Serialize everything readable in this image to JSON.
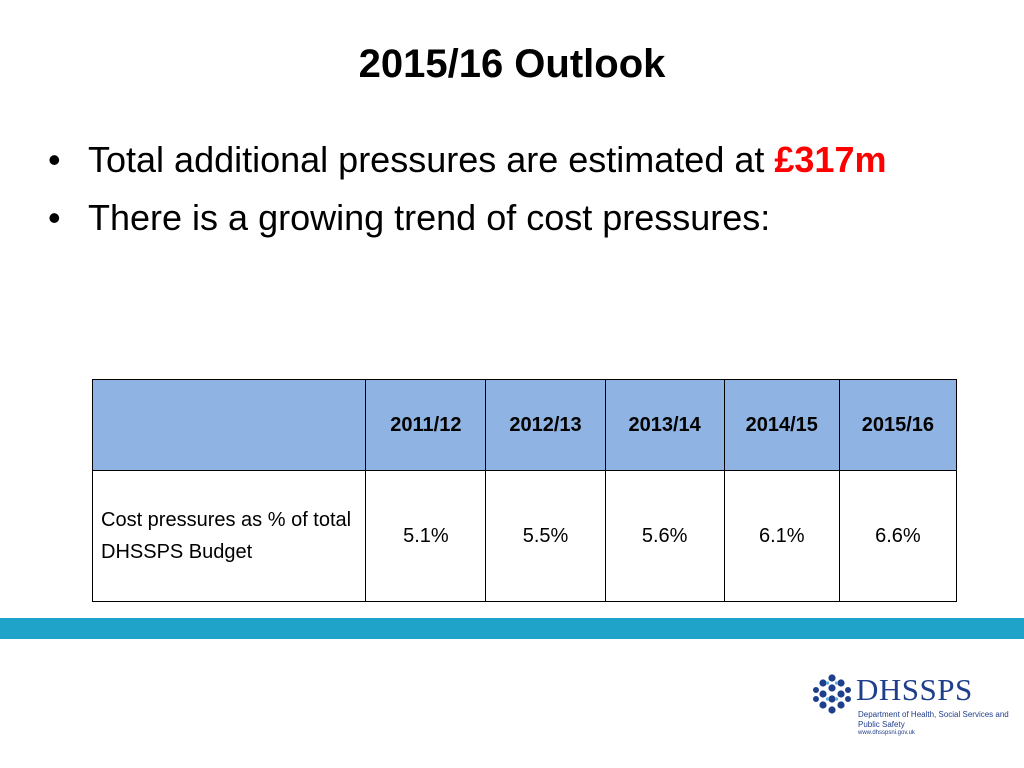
{
  "slide": {
    "title": "2015/16 Outlook",
    "bullets": [
      {
        "text": "Total additional pressures are estimated at ",
        "highlight": "£317m"
      },
      {
        "text": "There is a growing trend of cost pressures:"
      }
    ]
  },
  "table": {
    "columns": [
      "",
      "2011/12",
      "2012/13",
      "2013/14",
      "2014/15",
      "2015/16"
    ],
    "rows": [
      {
        "label": "Cost pressures as % of total DHSSPS Budget",
        "values": [
          "5.1%",
          "5.5%",
          "5.6%",
          "6.1%",
          "6.6%"
        ]
      }
    ]
  },
  "logo": {
    "name": "DHSSPS",
    "subtitle": "Department of Health, Social Services and Public Safety",
    "website": "www.dhsspsni.gov.uk"
  },
  "colors": {
    "header_fill": "#8fb4e3",
    "band": "#1fa3c8",
    "highlight": "#ff0000",
    "logo": "#1f3e8c"
  }
}
